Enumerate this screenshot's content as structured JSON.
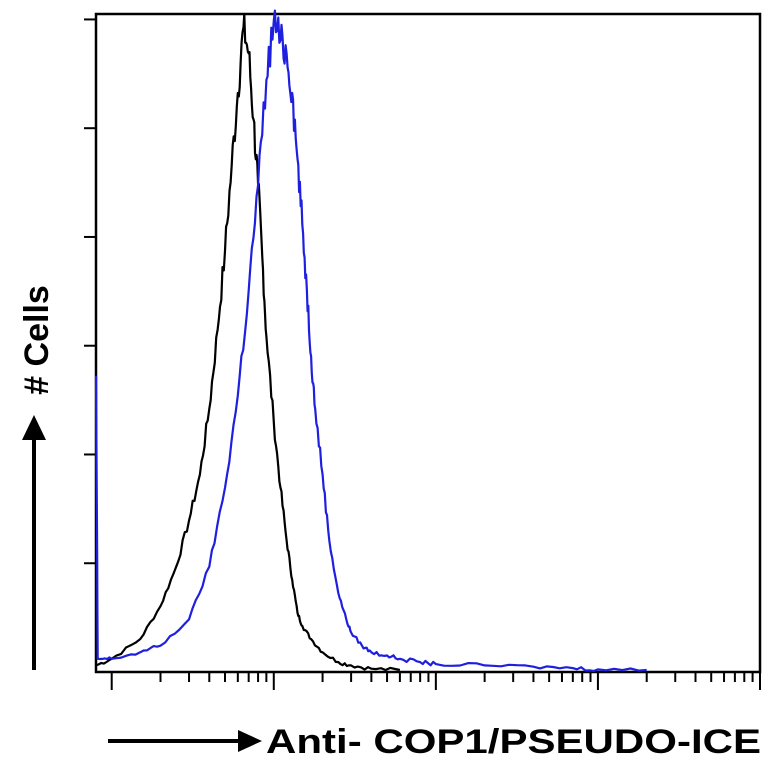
{
  "chart_data": {
    "type": "line",
    "title": "",
    "xlabel": "Anti- COP1/PSEUDO-ICE",
    "ylabel": "# Cells",
    "x_scale": "log",
    "xlim": [
      0.8,
      10000
    ],
    "ylim": [
      0,
      100
    ],
    "grid": false,
    "legend": "none",
    "series": [
      {
        "color": "#000000",
        "x": [
          0.8,
          1.0,
          1.5,
          2.0,
          2.5,
          3.0,
          3.5,
          4.0,
          4.5,
          5.0,
          5.5,
          6.0,
          6.5,
          7.0,
          7.5,
          8.0,
          8.5,
          9.0,
          10,
          11,
          12,
          13,
          14,
          15,
          17,
          20,
          25,
          30,
          40,
          60
        ],
        "y": [
          1,
          2,
          5,
          10,
          16,
          23,
          30,
          40,
          52,
          64,
          77,
          88,
          98,
          94,
          84,
          74,
          63,
          51,
          38,
          28,
          20,
          14,
          9,
          7,
          5,
          3,
          1.5,
          1,
          0.5,
          0.3
        ]
      },
      {
        "color": "#1f1fe0",
        "x": [
          0.8,
          0.82,
          1.0,
          1.5,
          2.0,
          3.0,
          4.0,
          5.0,
          6.0,
          7.0,
          8.0,
          9.0,
          10,
          11,
          12,
          13,
          14,
          15,
          16,
          17,
          18,
          20,
          22,
          25,
          28,
          30,
          35,
          40,
          50,
          60,
          80,
          100,
          200,
          400,
          700,
          1000,
          2000
        ],
        "y": [
          45,
          2,
          2,
          3,
          4,
          8,
          16,
          28,
          42,
          58,
          74,
          90,
          99,
          96,
          94,
          88,
          78,
          68,
          58,
          48,
          40,
          30,
          20,
          12,
          8,
          6,
          4,
          3,
          2.5,
          2,
          1.5,
          1.2,
          1,
          0.8,
          0.6,
          0.4,
          0.3
        ]
      }
    ]
  }
}
